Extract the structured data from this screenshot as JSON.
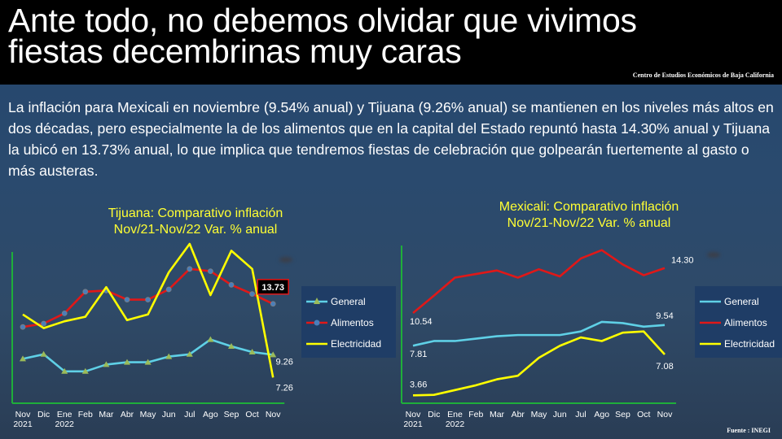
{
  "title": "Ante todo, no debemos olvidar que vivimos fiestas decembrinas muy caras",
  "source_top": "Centro de Estudios Económicos de Baja California",
  "paragraph": "La inflación para Mexicali en noviembre (9.54% anual) y Tijuana (9.26% anual) se mantienen en los niveles más altos en dos décadas, pero especialmente la de los alimentos que en la capital del Estado repuntó hasta 14.30% anual y Tijuana la ubicó en 13.73% anual, lo que implica que tendremos fiestas de celebración que golpearán fuertemente al gasto o más austeras.",
  "footer_source": "Fuente : INEGI",
  "colors": {
    "general": "#5fd0e6",
    "alimentos": "#e01818",
    "electricidad": "#ffff00",
    "axis": "#1fae3a",
    "title_yellow": "#ffff33"
  },
  "chart_data": [
    {
      "type": "line",
      "title_line1": "Tijuana: Comparativo inflación",
      "title_line2": "Nov/21-Nov/22 Var. % anual",
      "categories": [
        "Nov",
        "Dic",
        "Ene",
        "Feb",
        "Mar",
        "Abr",
        "May",
        "Jun",
        "Jul",
        "Ago",
        "Sep",
        "Oct",
        "Nov"
      ],
      "year_labels": [
        "2021",
        "",
        "2022",
        "",
        "",
        "",
        "",
        "",
        "",
        "",
        "",
        "",
        ""
      ],
      "ylim": [
        5,
        19
      ],
      "grid": false,
      "legend_position": "right",
      "series": [
        {
          "name": "General",
          "key": "general",
          "values": [
            8.9,
            9.3,
            7.8,
            7.8,
            8.4,
            8.6,
            8.6,
            9.1,
            9.3,
            10.6,
            10.0,
            9.5,
            9.26
          ]
        },
        {
          "name": "Alimentos",
          "key": "alimentos",
          "values": [
            11.7,
            12.0,
            12.9,
            14.8,
            14.9,
            14.1,
            14.1,
            15.0,
            16.8,
            16.6,
            15.4,
            14.6,
            13.73
          ]
        },
        {
          "name": "Electricidad",
          "key": "electricidad",
          "values": [
            12.8,
            11.6,
            12.2,
            12.6,
            15.2,
            12.3,
            12.8,
            16.5,
            19.0,
            14.5,
            18.4,
            16.8,
            7.26
          ]
        }
      ],
      "annotations": [
        {
          "series": "alimentos",
          "index": 12,
          "text": "13.73"
        },
        {
          "series": "general",
          "index": 12,
          "text": "9.26"
        },
        {
          "series": "electricidad",
          "index": 12,
          "text": "7.26"
        }
      ]
    },
    {
      "type": "line",
      "title_line1": "Mexicali: Comparativo inflación",
      "title_line2": "Nov/21-Nov/22 Var. % anual",
      "categories": [
        "Nov",
        "Dic",
        "Ene",
        "Feb",
        "Mar",
        "Abr",
        "May",
        "Jun",
        "Jul",
        "Ago",
        "Sep",
        "Oct",
        "Nov"
      ],
      "year_labels": [
        "2021",
        "",
        "2022",
        "",
        "",
        "",
        "",
        "",
        "",
        "",
        "",
        "",
        ""
      ],
      "ylim": [
        3,
        17
      ],
      "grid": false,
      "legend_position": "right",
      "series": [
        {
          "name": "General",
          "key": "general",
          "values": [
            7.81,
            8.2,
            8.2,
            8.4,
            8.6,
            8.7,
            8.7,
            8.7,
            9.0,
            9.8,
            9.7,
            9.4,
            9.54
          ]
        },
        {
          "name": "Alimentos",
          "key": "alimentos",
          "values": [
            10.54,
            12.0,
            13.5,
            13.8,
            14.1,
            13.5,
            14.2,
            13.6,
            15.1,
            15.8,
            14.6,
            13.7,
            14.3
          ]
        },
        {
          "name": "Electricidad",
          "key": "electricidad",
          "values": [
            3.66,
            3.7,
            4.1,
            4.5,
            5.0,
            5.3,
            6.8,
            7.8,
            8.5,
            8.2,
            8.9,
            9.0,
            7.08
          ]
        }
      ],
      "annotations": [
        {
          "series": "alimentos",
          "index": 0,
          "text": "10.54"
        },
        {
          "series": "general",
          "index": 0,
          "text": "7.81"
        },
        {
          "series": "electricidad",
          "index": 0,
          "text": "3.66"
        },
        {
          "series": "alimentos",
          "index": 12,
          "text": "14.30"
        },
        {
          "series": "general",
          "index": 12,
          "text": "9.54"
        },
        {
          "series": "electricidad",
          "index": 12,
          "text": "7.08"
        }
      ]
    }
  ]
}
